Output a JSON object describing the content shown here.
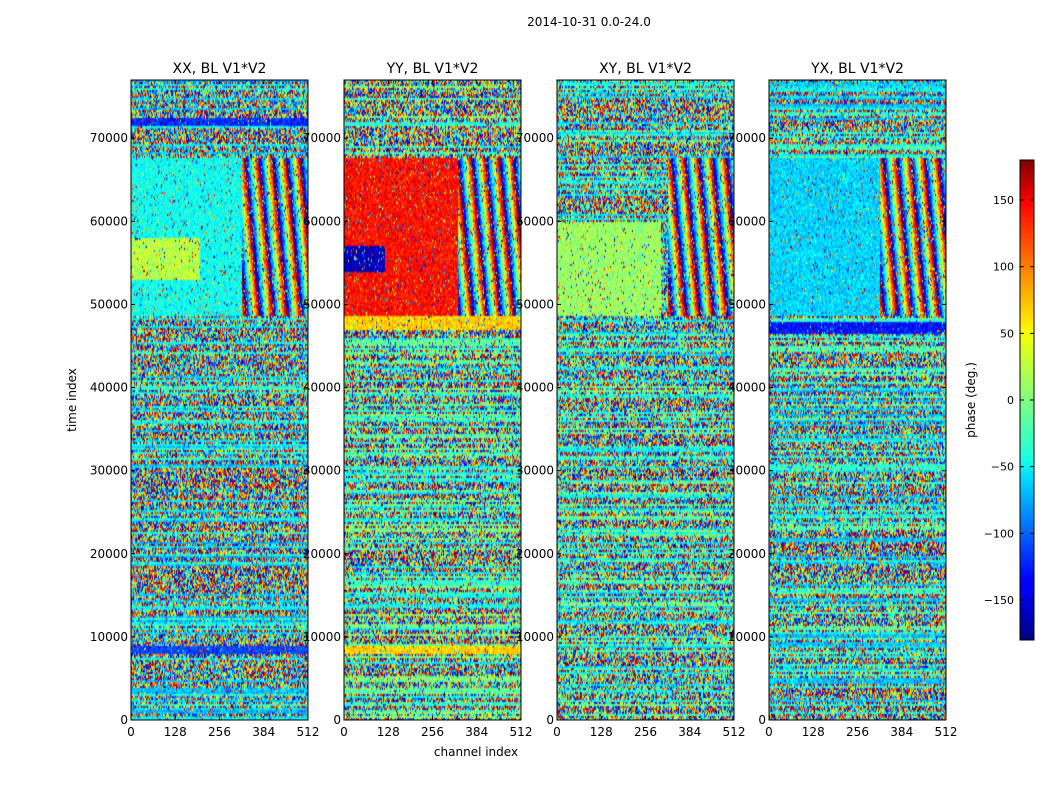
{
  "chart_data": {
    "type": "heatmap",
    "suptitle": "2014-10-31 0.0-24.0",
    "xlabel": "channel index",
    "ylabel": "time index",
    "colorbar_label": "phase (deg.)",
    "colormap": "jet",
    "colorbar_range": [
      -180,
      180
    ],
    "colorbar_ticks": [
      150,
      100,
      50,
      0,
      -50,
      -100,
      -150
    ],
    "colorbar_tick_labels": [
      "150",
      "100",
      "50",
      "0",
      "−50",
      "−100",
      "−150"
    ],
    "xlim": [
      0,
      512
    ],
    "ylim": [
      0,
      77000
    ],
    "x_ticks": [
      0,
      128,
      256,
      384,
      512
    ],
    "y_ticks": [
      0,
      10000,
      20000,
      30000,
      40000,
      50000,
      60000,
      70000
    ],
    "panels": [
      {
        "title": "XX, BL V1*V2",
        "base_phase": -50,
        "regions": [
          {
            "t0": 48500,
            "t1": 67500,
            "c0": 0,
            "c1": 320,
            "phase": -40,
            "note": "coherent block"
          },
          {
            "t0": 53000,
            "t1": 58000,
            "c0": 0,
            "c1": 200,
            "phase": 20,
            "note": "yellow-green band"
          },
          {
            "t0": 71500,
            "t1": 72500,
            "c0": 0,
            "c1": 512,
            "phase": -120,
            "note": "blue stripe"
          },
          {
            "t0": 8000,
            "t1": 9000,
            "c0": 0,
            "c1": 512,
            "phase": -110,
            "note": "blue stripe"
          }
        ]
      },
      {
        "title": "YY, BL V1*V2",
        "base_phase": -20,
        "regions": [
          {
            "t0": 48500,
            "t1": 67500,
            "c0": 0,
            "c1": 330,
            "phase": 130,
            "note": "red block"
          },
          {
            "t0": 54000,
            "t1": 57000,
            "c0": 0,
            "c1": 120,
            "phase": -160,
            "note": "dark blue band"
          },
          {
            "t0": 47000,
            "t1": 48500,
            "c0": 0,
            "c1": 512,
            "phase": 60,
            "note": "yellow stripe"
          },
          {
            "t0": 8000,
            "t1": 9000,
            "c0": 0,
            "c1": 512,
            "phase": 60,
            "note": "orange stripe"
          }
        ]
      },
      {
        "title": "XY, BL V1*V2",
        "base_phase": -30,
        "regions": [
          {
            "t0": 48500,
            "t1": 60000,
            "c0": 0,
            "c1": 300,
            "phase": 10,
            "note": "noisy green-yellow block"
          }
        ]
      },
      {
        "title": "YX, BL V1*V2",
        "base_phase": -40,
        "regions": [
          {
            "t0": 48500,
            "t1": 67500,
            "c0": 0,
            "c1": 320,
            "phase": -60,
            "note": "cyan block"
          },
          {
            "t0": 46500,
            "t1": 48000,
            "c0": 0,
            "c1": 512,
            "phase": -130,
            "note": "blue stripe"
          }
        ]
      }
    ]
  }
}
